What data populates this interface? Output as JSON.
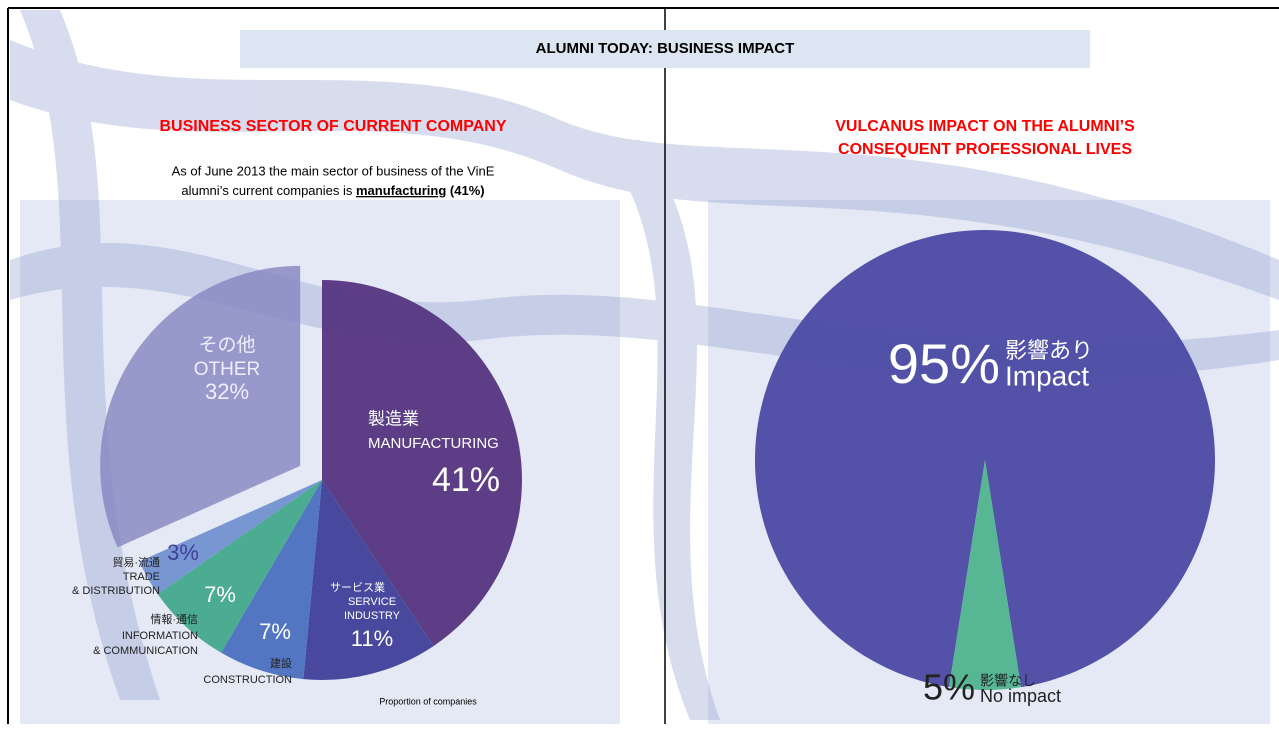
{
  "header": {
    "title": "ALUMNI TODAY: BUSINESS IMPACT",
    "left_heading": "BUSINESS SECTOR OF CURRENT COMPANY",
    "left_text": [
      "As of June 2013 the main sector of business of the VinE",
      "alumni’s current companies is",
      "manufacturing",
      "(41%)"
    ],
    "right_heading": [
      "VULCANUS IMPACT ON THE ALUMNI’S",
      "CONSEQUENT PROFESSIONAL LIVES"
    ]
  },
  "chart_data": [
    {
      "type": "pie",
      "caption": "Proportion of companies",
      "categories": [
        [
          "製造業",
          "MANUFACTURING"
        ],
        [
          "サービス業",
          "SERVICE",
          "INDUSTRY"
        ],
        [
          "建設",
          "CONSTRUCTION"
        ],
        [
          "情報·通信",
          "INFORMATION",
          "& COMMUNICATION"
        ],
        [
          "貿易·流通",
          "TRADE",
          "& DISTRIBUTION"
        ],
        [
          "その他",
          "OTHER"
        ]
      ],
      "values": [
        41,
        11,
        7,
        7,
        3,
        32
      ],
      "value_labels": [
        "41%",
        "11%",
        "7%",
        "7%",
        "3%",
        "32%"
      ],
      "colors": [
        "#55357f",
        "#3e3f99",
        "#4a70bf",
        "#43a98c",
        "#7291d0",
        "#8584c0"
      ]
    },
    {
      "type": "pie",
      "categories": [
        [
          "影響あり",
          "Impact"
        ],
        [
          "影響なし",
          "No impact"
        ]
      ],
      "values": [
        95,
        5
      ],
      "value_labels": [
        "95%",
        "5%"
      ],
      "colors": [
        "#4b4aa3",
        "#4fb48e"
      ]
    }
  ]
}
